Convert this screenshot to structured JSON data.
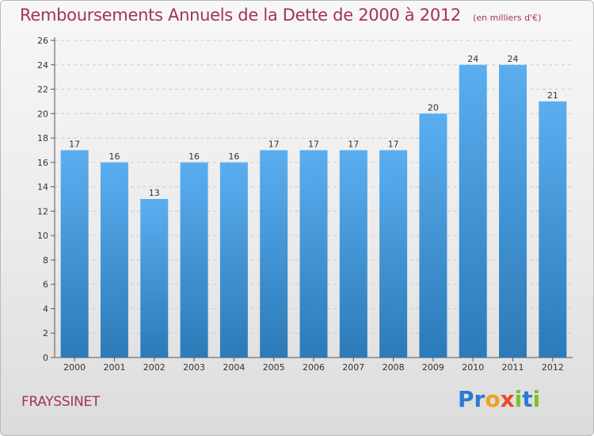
{
  "title": "Remboursements Annuels de la Dette de 2000 à 2012",
  "subtitle": "(en milliers d'€)",
  "commune": "FRAYSSINET",
  "brand": "Proxiti",
  "colors": {
    "title": "#a3325c",
    "bar_top": "#5aaef0",
    "bar_bottom": "#2c7ab8",
    "grid": "#cccccc"
  },
  "chart_data": {
    "type": "bar",
    "categories": [
      "2000",
      "2001",
      "2002",
      "2003",
      "2004",
      "2005",
      "2006",
      "2007",
      "2008",
      "2009",
      "2010",
      "2011",
      "2012"
    ],
    "values": [
      17,
      16,
      13,
      16,
      16,
      17,
      17,
      17,
      17,
      20,
      24,
      24,
      21
    ],
    "title": "Remboursements Annuels de la Dette de 2000 à 2012",
    "subtitle": "(en milliers d'€)",
    "ylim": [
      0,
      26
    ],
    "yticks": [
      0,
      2,
      4,
      6,
      8,
      10,
      12,
      14,
      16,
      18,
      20,
      22,
      24,
      26
    ],
    "grid": true,
    "data_labels": true
  }
}
